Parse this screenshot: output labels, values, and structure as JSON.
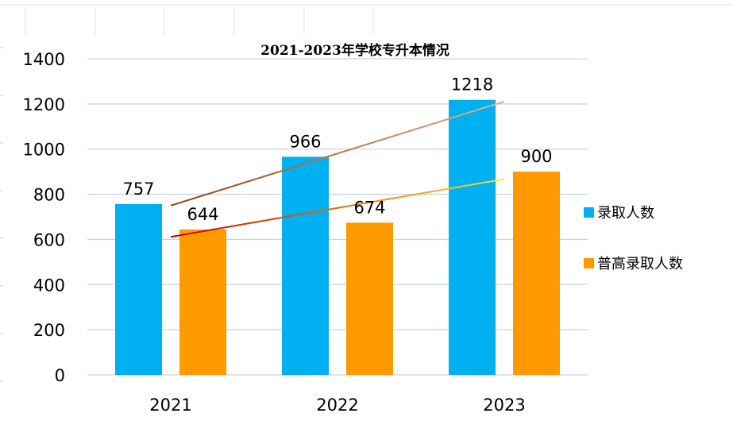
{
  "chart_data": {
    "type": "bar",
    "title": "2021-2023年学校专升本情况",
    "categories": [
      "2021",
      "2022",
      "2023"
    ],
    "series": [
      {
        "name": "录取人数",
        "values": [
          757,
          966,
          1218
        ],
        "color": "#00B0F0"
      },
      {
        "name": "普高录取人数",
        "values": [
          644,
          674,
          900
        ],
        "color": "#FF9900"
      }
    ],
    "trendlines": [
      {
        "series": "录取人数",
        "type": "linear",
        "colors": [
          "#8B4513",
          "#E0B090"
        ]
      },
      {
        "series": "普高录取人数",
        "type": "linear",
        "colors": [
          "#C00000",
          "#FFE030"
        ]
      }
    ],
    "yticks": [
      "0",
      "200",
      "400",
      "600",
      "800",
      "1000",
      "1200",
      "1400"
    ],
    "ylim": [
      0,
      1400
    ],
    "grid": true,
    "legend_position": "right",
    "data_labels": true
  }
}
